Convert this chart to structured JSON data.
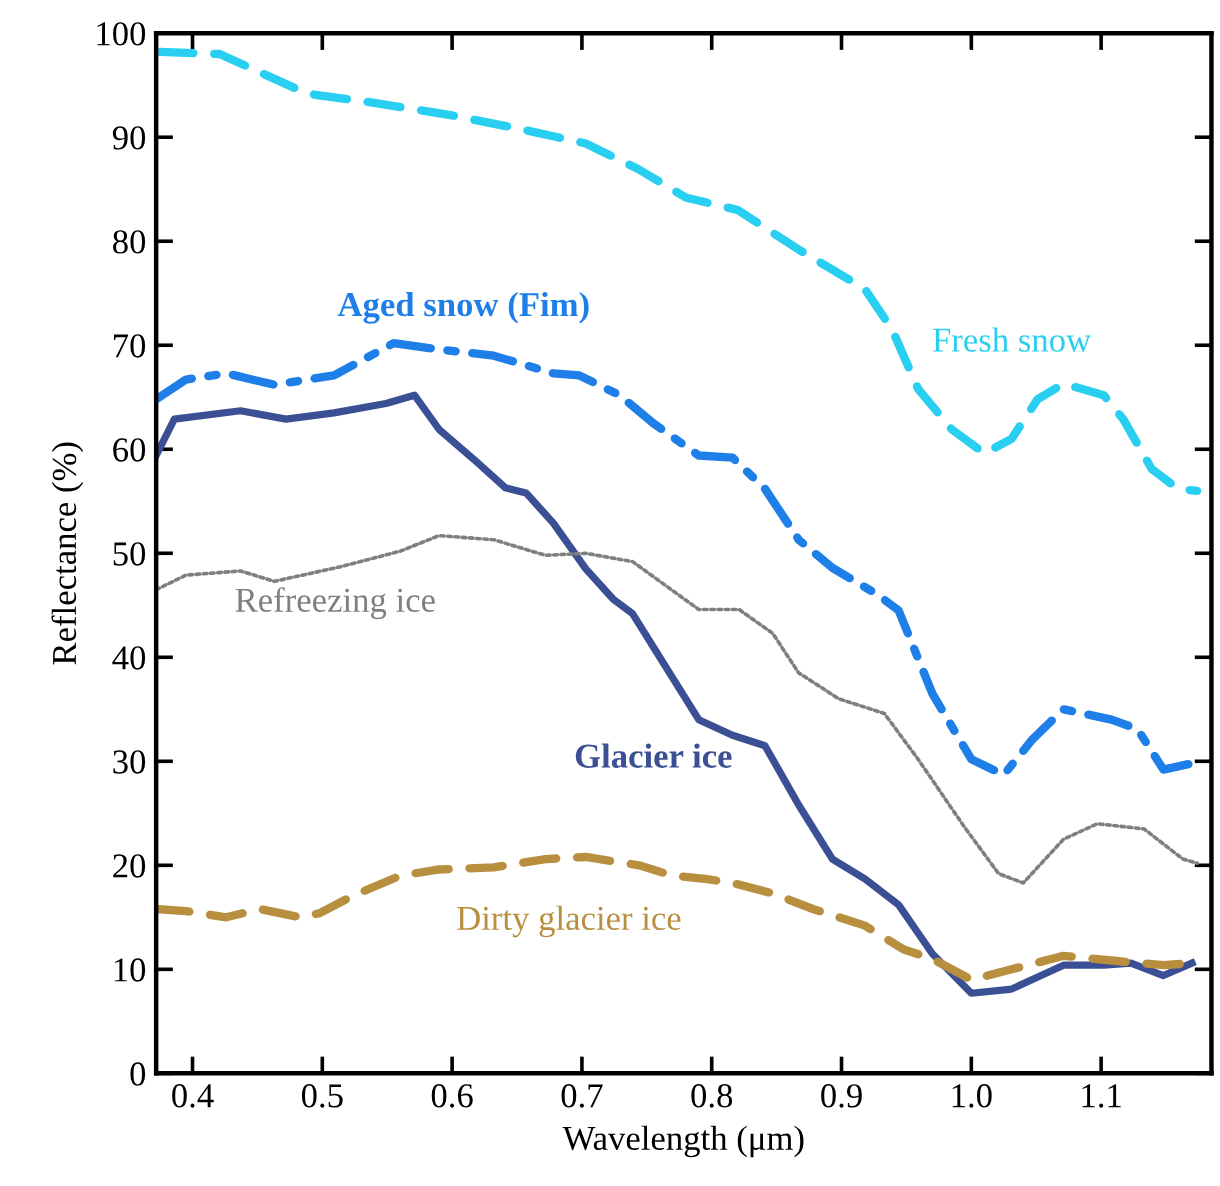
{
  "chart_data": {
    "type": "line",
    "xlabel": "Wavelength (μm)",
    "ylabel": "Reflectance (%)",
    "xlim": [
      0.372,
      1.185
    ],
    "ylim": [
      0,
      100
    ],
    "xticks": [
      {
        "value": 0.4,
        "label": "0.4"
      },
      {
        "value": 0.5,
        "label": "0.5"
      },
      {
        "value": 0.6,
        "label": "0.6"
      },
      {
        "value": 0.7,
        "label": "0.7"
      },
      {
        "value": 0.8,
        "label": "0.8"
      },
      {
        "value": 0.9,
        "label": "0.9"
      },
      {
        "value": 1.0,
        "label": "1.0"
      },
      {
        "value": 1.1,
        "label": "1.1"
      }
    ],
    "yticks": [
      0,
      10,
      20,
      30,
      40,
      50,
      60,
      70,
      80,
      90,
      100
    ],
    "grid": false,
    "legend": false,
    "marker": "none",
    "series": [
      {
        "name": "Fresh snow",
        "color": "#29cff0",
        "line_style": "dashed",
        "x": [
          0.375,
          0.421,
          0.488,
          0.54,
          0.6,
          0.652,
          0.703,
          0.744,
          0.78,
          0.82,
          0.867,
          0.918,
          0.939,
          0.959,
          0.985,
          1.01,
          1.031,
          1.051,
          1.071,
          1.102,
          1.117,
          1.139,
          1.159,
          1.174
        ],
        "values": [
          98.2,
          98,
          94.2,
          93.3,
          92.1,
          90.8,
          89.4,
          86.9,
          84.2,
          83,
          79.2,
          75.4,
          71.5,
          65.8,
          61.9,
          59.6,
          61,
          64.8,
          66.3,
          65.2,
          62.9,
          58.1,
          56.2,
          56
        ]
      },
      {
        "name": "Aged snow (Fim)",
        "color": "#1f7fe8",
        "line_style": "dashdot",
        "x": [
          0.372,
          0.395,
          0.426,
          0.463,
          0.509,
          0.555,
          0.59,
          0.632,
          0.678,
          0.698,
          0.729,
          0.755,
          0.79,
          0.816,
          0.841,
          0.867,
          0.893,
          0.928,
          0.944,
          0.97,
          1.0,
          1.025,
          1.047,
          1.071,
          1.108,
          1.128,
          1.148,
          1.17
        ],
        "values": [
          64.8,
          66.7,
          67.3,
          66.2,
          67.1,
          70.2,
          69.6,
          69,
          67.3,
          67.1,
          65.2,
          62.5,
          59.4,
          59.2,
          56.2,
          51.3,
          48.6,
          46,
          44.5,
          36.5,
          30.2,
          28.7,
          32.1,
          35,
          34,
          33.1,
          29.2,
          29.8
        ]
      },
      {
        "name": "Glacier ice",
        "color": "#3a4f94",
        "line_style": "solid",
        "x": [
          0.372,
          0.386,
          0.437,
          0.472,
          0.509,
          0.549,
          0.571,
          0.59,
          0.617,
          0.641,
          0.657,
          0.678,
          0.703,
          0.724,
          0.739,
          0.764,
          0.79,
          0.816,
          0.841,
          0.867,
          0.893,
          0.918,
          0.944,
          0.97,
          1.0,
          1.031,
          1.071,
          1.102,
          1.123,
          1.148,
          1.17
        ],
        "values": [
          59.4,
          62.9,
          63.7,
          62.9,
          63.5,
          64.4,
          65.2,
          61.9,
          59,
          56.3,
          55.8,
          52.9,
          48.5,
          45.6,
          44.2,
          39.2,
          34,
          32.5,
          31.5,
          25.8,
          20.6,
          18.7,
          16.2,
          11.5,
          7.7,
          8.1,
          10.4,
          10.4,
          10.6,
          9.4,
          10.6
        ]
      },
      {
        "name": "Refreezing ice",
        "color": "#7f7f7f",
        "line_style": "dotted",
        "x": [
          0.372,
          0.395,
          0.437,
          0.463,
          0.514,
          0.56,
          0.59,
          0.632,
          0.672,
          0.703,
          0.739,
          0.79,
          0.821,
          0.847,
          0.867,
          0.898,
          0.933,
          0.959,
          0.994,
          1.021,
          1.04,
          1.071,
          1.097,
          1.133,
          1.163,
          1.174
        ],
        "values": [
          46.5,
          47.9,
          48.3,
          47.3,
          48.7,
          50.2,
          51.7,
          51.3,
          49.8,
          50,
          49.2,
          44.6,
          44.6,
          42.3,
          38.5,
          36,
          34.6,
          30.2,
          23.8,
          19.2,
          18.3,
          22.5,
          24,
          23.5,
          20.6,
          20.2
        ]
      },
      {
        "name": "Dirty glacier ice",
        "color": "#b88f3e",
        "line_style": "dashed",
        "x": [
          0.372,
          0.395,
          0.426,
          0.452,
          0.483,
          0.498,
          0.524,
          0.56,
          0.59,
          0.632,
          0.672,
          0.703,
          0.744,
          0.77,
          0.795,
          0.816,
          0.847,
          0.878,
          0.918,
          0.948,
          0.97,
          1.0,
          1.031,
          1.071,
          1.112,
          1.148,
          1.17
        ],
        "values": [
          15.8,
          15.6,
          15,
          15.8,
          15,
          15.4,
          17.1,
          19,
          19.6,
          19.8,
          20.6,
          20.8,
          20,
          19,
          18.7,
          18.3,
          17.3,
          15.8,
          14.2,
          11.9,
          11,
          9,
          10,
          11.3,
          10.8,
          10.4,
          10.6
        ]
      }
    ]
  }
}
